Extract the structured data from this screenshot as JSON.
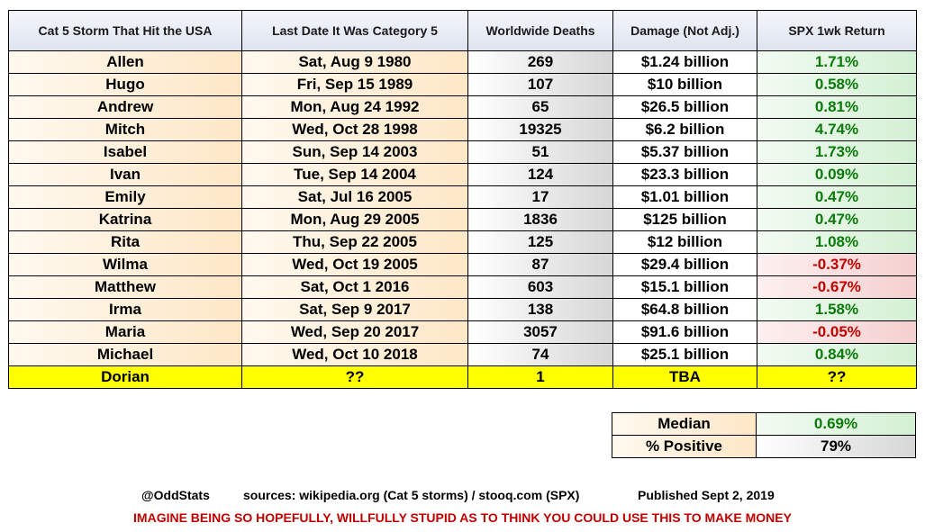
{
  "chart_data": {
    "type": "table",
    "columns": [
      "Cat 5 Storm That Hit the USA",
      "Last Date It Was Category 5",
      "Worldwide Deaths",
      "Damage (Not Adj.)",
      "SPX 1wk Return"
    ],
    "rows": [
      {
        "storm": "Allen",
        "date": "Sat, Aug 9 1980",
        "deaths": "269",
        "damage": "$1.24 billion",
        "ret": "1.71%",
        "sign": "pos"
      },
      {
        "storm": "Hugo",
        "date": "Fri, Sep 15 1989",
        "deaths": "107",
        "damage": "$10 billion",
        "ret": "0.58%",
        "sign": "pos"
      },
      {
        "storm": "Andrew",
        "date": "Mon, Aug 24 1992",
        "deaths": "65",
        "damage": "$26.5 billion",
        "ret": "0.81%",
        "sign": "pos"
      },
      {
        "storm": "Mitch",
        "date": "Wed, Oct 28 1998",
        "deaths": "19325",
        "damage": "$6.2 billion",
        "ret": "4.74%",
        "sign": "pos"
      },
      {
        "storm": "Isabel",
        "date": "Sun, Sep 14 2003",
        "deaths": "51",
        "damage": "$5.37 billion",
        "ret": "1.73%",
        "sign": "pos"
      },
      {
        "storm": "Ivan",
        "date": "Tue, Sep 14 2004",
        "deaths": "124",
        "damage": "$23.3 billion",
        "ret": "0.09%",
        "sign": "pos"
      },
      {
        "storm": "Emily",
        "date": "Sat, Jul 16 2005",
        "deaths": "17",
        "damage": "$1.01 billion",
        "ret": "0.47%",
        "sign": "pos"
      },
      {
        "storm": "Katrina",
        "date": "Mon, Aug 29 2005",
        "deaths": "1836",
        "damage": "$125 billion",
        "ret": "0.47%",
        "sign": "pos"
      },
      {
        "storm": "Rita",
        "date": "Thu, Sep 22 2005",
        "deaths": "125",
        "damage": "$12 billion",
        "ret": "1.08%",
        "sign": "pos"
      },
      {
        "storm": "Wilma",
        "date": "Wed, Oct 19 2005",
        "deaths": "87",
        "damage": "$29.4 billion",
        "ret": "-0.37%",
        "sign": "neg"
      },
      {
        "storm": "Matthew",
        "date": "Sat, Oct 1 2016",
        "deaths": "603",
        "damage": "$15.1 billion",
        "ret": "-0.67%",
        "sign": "neg"
      },
      {
        "storm": "Irma",
        "date": "Sat, Sep 9 2017",
        "deaths": "138",
        "damage": "$64.8 billion",
        "ret": "1.58%",
        "sign": "pos"
      },
      {
        "storm": "Maria",
        "date": "Wed, Sep 20 2017",
        "deaths": "3057",
        "damage": "$91.6 billion",
        "ret": "-0.05%",
        "sign": "neg"
      },
      {
        "storm": "Michael",
        "date": "Wed, Oct 10 2018",
        "deaths": "74",
        "damage": "$25.1 billion",
        "ret": "0.84%",
        "sign": "pos"
      }
    ],
    "highlight_row": {
      "storm": "Dorian",
      "date": "??",
      "deaths": "1",
      "damage": "TBA",
      "ret": "??"
    },
    "summary": [
      {
        "label": "Median",
        "value": "0.69%"
      },
      {
        "label": "% Positive",
        "value": "79%"
      }
    ]
  },
  "footer": {
    "author": "@OddStats",
    "sources": "sources: wikipedia.org (Cat 5 storms) / stooq.com (SPX)",
    "published": "Published Sept 2, 2019",
    "warning": "IMAGINE BEING SO HOPEFULLY, WILLFULLY STUPID AS TO THINK YOU COULD USE THIS TO MAKE MONEY"
  },
  "colors": {
    "positive": "#0a7a0a",
    "negative": "#c00000",
    "highlight": "#ffff00",
    "warning": "#c00000"
  }
}
